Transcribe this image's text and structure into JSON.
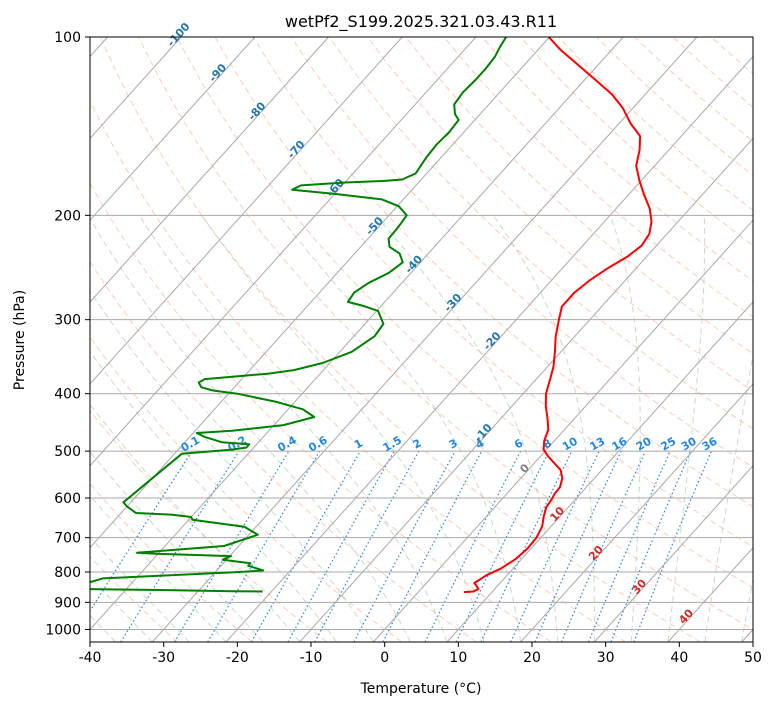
{
  "chart_data": {
    "type": "line",
    "diagram": "skew-T log-p",
    "title": "wetPf2_S199.2025.321.03.43.R11",
    "xlabel": "Temperature (°C)",
    "ylabel": "Pressure (hPa)",
    "xlim": [
      -40,
      50
    ],
    "ylim": [
      1050,
      100
    ],
    "y_scale": "log",
    "grid": true,
    "x_ticks": [
      -40,
      -30,
      -20,
      -10,
      0,
      10,
      20,
      30,
      40,
      50
    ],
    "y_ticks": [
      100,
      200,
      300,
      400,
      500,
      600,
      700,
      800,
      900,
      1000
    ],
    "isotherm_labels": [
      "-100",
      "-90",
      "-80",
      "-70",
      "-60",
      "-50",
      "-40",
      "-30",
      "-20",
      "-10",
      "0",
      "10",
      "20",
      "30",
      "40"
    ],
    "mixing_ratio_labels": [
      "0.1",
      "0.2",
      "0.4",
      "0.6",
      "1",
      "1.5",
      "2",
      "3",
      "4",
      "6",
      "8",
      "10",
      "13",
      "16",
      "20",
      "25",
      "30",
      "36"
    ],
    "colors": {
      "temperature": "#ff0000",
      "dewpoint": "#008000",
      "isotherm_cold": "#1f77b4",
      "isotherm_warm": "#d62728",
      "isotherm_zero": "#808080",
      "mixing_ratio": "#1e88e5",
      "dry_adiabat": "#ffa07a",
      "moist_adiabat": "#8fbc8f",
      "skewed_grid": "#a9a9a9"
    },
    "series": [
      {
        "points": [
          [
            6.2,
            865
          ],
          [
            7.4,
            863
          ],
          [
            7.8,
            855
          ],
          [
            7.2,
            845
          ],
          [
            6.5,
            835
          ],
          [
            6.8,
            825
          ],
          [
            7.2,
            810
          ],
          [
            8.3,
            790
          ],
          [
            9.2,
            760
          ],
          [
            9.5,
            730
          ],
          [
            9.4,
            700
          ],
          [
            8.8,
            670
          ],
          [
            7.8,
            645
          ],
          [
            7.0,
            622
          ],
          [
            6.8,
            604
          ],
          [
            6.5,
            590
          ],
          [
            6.4,
            575
          ],
          [
            5.6,
            555
          ],
          [
            4.4,
            538
          ],
          [
            2.6,
            523
          ],
          [
            1.0,
            510
          ],
          [
            -0.4,
            497
          ],
          [
            -1.4,
            480
          ],
          [
            -2.2,
            460
          ],
          [
            -3.7,
            440
          ],
          [
            -5.4,
            420
          ],
          [
            -6.9,
            400
          ],
          [
            -8.0,
            380
          ],
          [
            -9.2,
            360
          ],
          [
            -10.8,
            340
          ],
          [
            -12.6,
            320
          ],
          [
            -14.2,
            300
          ],
          [
            -15.4,
            285
          ],
          [
            -15.4,
            270
          ],
          [
            -14.8,
            257
          ],
          [
            -13.8,
            245
          ],
          [
            -12.6,
            235
          ],
          [
            -12.0,
            225
          ],
          [
            -12.4,
            215
          ],
          [
            -13.6,
            205
          ],
          [
            -15.4,
            195
          ],
          [
            -17.8,
            185
          ],
          [
            -20.2,
            175
          ],
          [
            -22.5,
            165
          ],
          [
            -24.0,
            155
          ],
          [
            -25.6,
            147
          ],
          [
            -28.4,
            140
          ],
          [
            -31.3,
            132
          ],
          [
            -34.5,
            125
          ],
          [
            -38.6,
            118
          ],
          [
            -43.0,
            111
          ],
          [
            -47.0,
            105
          ],
          [
            -50.1,
            100
          ]
        ]
      },
      {
        "points": [
          [
            -21.2,
            863
          ],
          [
            -25.4,
            862
          ],
          [
            -35.2,
            858
          ],
          [
            -45.0,
            855
          ],
          [
            -48.0,
            854
          ],
          [
            -44.5,
            820
          ],
          [
            -26.7,
            800
          ],
          [
            -23.7,
            795
          ],
          [
            -26.3,
            781
          ],
          [
            -26.3,
            773
          ],
          [
            -30.5,
            763
          ],
          [
            -29.8,
            752
          ],
          [
            -40.3,
            745
          ],
          [
            -43.0,
            742
          ],
          [
            -32.0,
            723
          ],
          [
            -28.8,
            692
          ],
          [
            -31.6,
            671
          ],
          [
            -39.5,
            653
          ],
          [
            -40.0,
            646
          ],
          [
            -43.0,
            640
          ],
          [
            -48.0,
            636
          ],
          [
            -50.0,
            620
          ],
          [
            -51.0,
            610
          ],
          [
            -49.0,
            505
          ],
          [
            -42.7,
            497
          ],
          [
            -41.0,
            493
          ],
          [
            -41.0,
            487
          ],
          [
            -45.0,
            483
          ],
          [
            -48.0,
            473
          ],
          [
            -49.5,
            466
          ],
          [
            -45.0,
            462
          ],
          [
            -38.7,
            452
          ],
          [
            -35.5,
            438
          ],
          [
            -38.0,
            425
          ],
          [
            -42.5,
            413
          ],
          [
            -48.8,
            400
          ],
          [
            -52.5,
            395
          ],
          [
            -54.5,
            390
          ],
          [
            -55.4,
            383
          ],
          [
            -55.0,
            378
          ],
          [
            -51.0,
            374
          ],
          [
            -47.0,
            370
          ],
          [
            -44.0,
            365
          ],
          [
            -41.0,
            355
          ],
          [
            -38.4,
            340
          ],
          [
            -37.2,
            320
          ],
          [
            -37.5,
            305
          ],
          [
            -39.8,
            290
          ],
          [
            -42.6,
            284
          ],
          [
            -45.0,
            280
          ],
          [
            -45.3,
            270
          ],
          [
            -44.5,
            260
          ],
          [
            -43.0,
            250
          ],
          [
            -42.4,
            240
          ],
          [
            -43.9,
            232
          ],
          [
            -46.1,
            226
          ],
          [
            -47.2,
            219
          ],
          [
            -47.3,
            210
          ],
          [
            -47.6,
            200
          ],
          [
            -49.8,
            193
          ],
          [
            -52.9,
            188
          ],
          [
            -60.0,
            184
          ],
          [
            -66.3,
            181
          ],
          [
            -65.6,
            178
          ],
          [
            -60.0,
            176
          ],
          [
            -55.0,
            175
          ],
          [
            -52.6,
            174
          ],
          [
            -51.5,
            170
          ],
          [
            -52.0,
            160
          ],
          [
            -52.2,
            152
          ],
          [
            -52.0,
            145
          ],
          [
            -52.2,
            138
          ],
          [
            -53.4,
            135
          ],
          [
            -54.7,
            130
          ],
          [
            -55.0,
            124
          ],
          [
            -54.8,
            118
          ],
          [
            -54.8,
            113
          ],
          [
            -55.0,
            108
          ],
          [
            -55.5,
            104
          ],
          [
            -55.9,
            100
          ]
        ]
      }
    ]
  }
}
